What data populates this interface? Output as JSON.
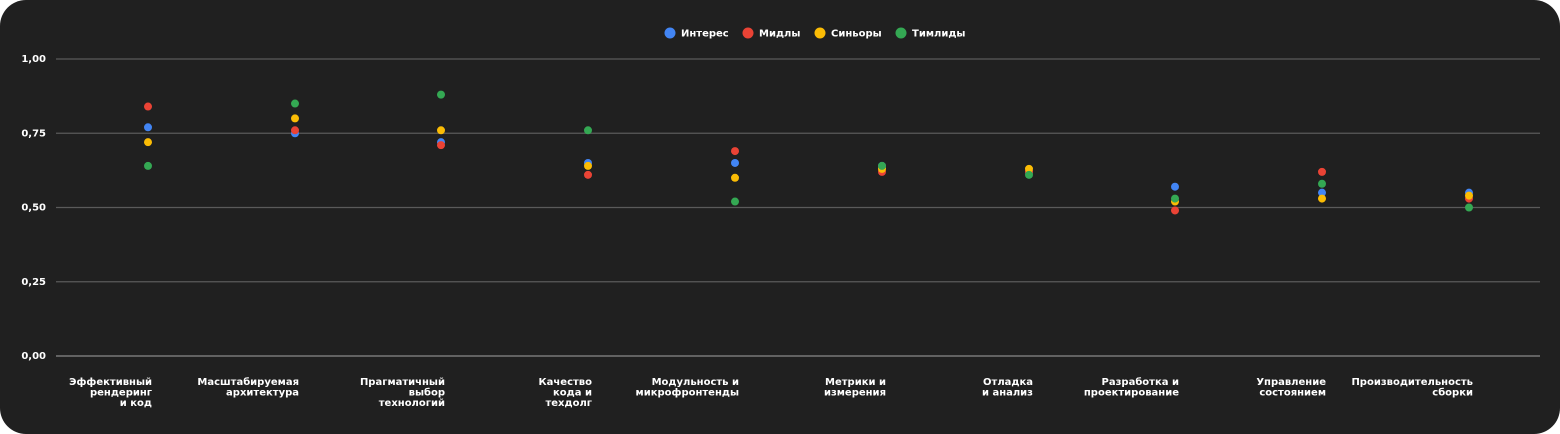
{
  "chart_data": {
    "type": "scatter",
    "categories": [
      [
        "Эффективный",
        "рендеринг",
        "и код"
      ],
      [
        "Масштабируемая",
        "архитектура"
      ],
      [
        "Прагматичный",
        "выбор",
        "технологий"
      ],
      [
        "Качество",
        "кода и",
        "техдолг"
      ],
      [
        "Модульность и",
        "микрофронтенды"
      ],
      [
        "Метрики и",
        "измерения"
      ],
      [
        "Отладка",
        "и анализ"
      ],
      [
        "Разработка и",
        "проектирование"
      ],
      [
        "Управление",
        "состоянием"
      ],
      [
        "Производительность",
        "сборки"
      ]
    ],
    "series": [
      {
        "name": "Интерес",
        "color": "#4285f4",
        "values": [
          0.77,
          0.75,
          0.72,
          0.65,
          0.65,
          0.64,
          0.62,
          0.57,
          0.55,
          0.55
        ]
      },
      {
        "name": "Мидлы",
        "color": "#ea4335",
        "values": [
          0.84,
          0.76,
          0.71,
          0.61,
          0.69,
          0.62,
          0.62,
          0.49,
          0.62,
          0.53
        ]
      },
      {
        "name": "Синьоры",
        "color": "#fbbc05",
        "values": [
          0.72,
          0.8,
          0.76,
          0.64,
          0.6,
          0.63,
          0.63,
          0.52,
          0.53,
          0.54
        ]
      },
      {
        "name": "Тимлиды",
        "color": "#34a853",
        "values": [
          0.64,
          0.85,
          0.88,
          0.76,
          0.52,
          0.64,
          0.61,
          0.53,
          0.58,
          0.5
        ]
      }
    ],
    "yticks": [
      "0,00",
      "0,25",
      "0,50",
      "0,75",
      "1,00"
    ],
    "ylim": [
      0,
      1
    ],
    "grid": true,
    "legend_position": "top-center"
  }
}
